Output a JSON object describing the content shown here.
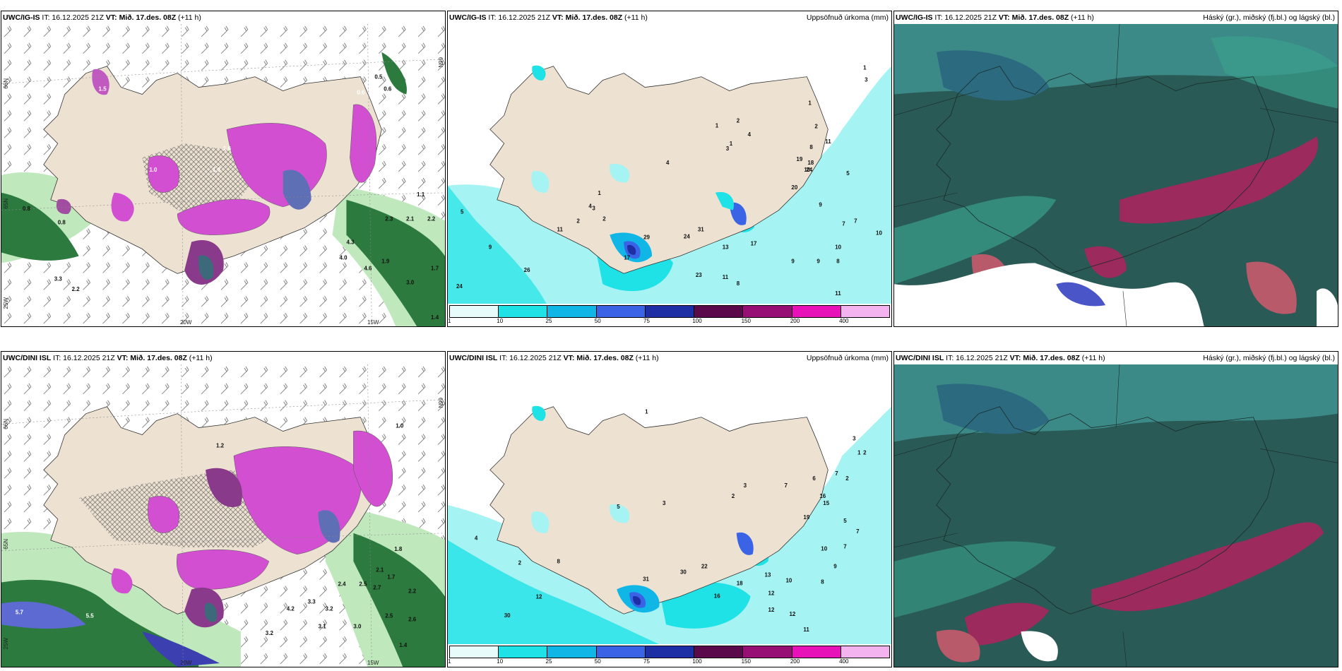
{
  "colors": {
    "land": "#ede2d2",
    "precip_light": "#a6f3f3",
    "precip_10": "#1fe2e6",
    "precip_25": "#10b7e6",
    "precip_50": "#3a63e6",
    "precip_75": "#1e2fa6",
    "precip_100": "#5a0a4a",
    "precip_150": "#970f75",
    "precip_200": "#e712b8",
    "precip_400": "#f3b3ef",
    "cloud_high": "#2a5a56",
    "cloud_mid": "#39a08b",
    "cloud_low": "#9c2a5c"
  },
  "colorbar_labels": [
    "1",
    "10",
    "25",
    "50",
    "75",
    "100",
    "150",
    "200",
    "400"
  ],
  "rows": [
    {
      "model": "UWC/IG-IS",
      "left": {
        "it": "IT: 16.12.2025 21Z",
        "vt": "VT: Mið. 17.des. 08Z",
        "step": "(+11 h)"
      },
      "mid": {
        "it": "IT: 16.12.2025 21Z",
        "vt": "VT: Mið. 17.des. 08Z",
        "step": "(+11 h)",
        "title": "Uppsöfnuð úrkoma (mm)"
      },
      "right": {
        "it": "IT: 16.12.2025 21Z",
        "vt": "VT: Mið. 17.des. 08Z",
        "step": "(+11 h)",
        "title": "Háský (gr.), miðský (fj.bl.) og lágský (bl.)"
      },
      "axes": {
        "lat_top": "66N",
        "lat_mid": "65N",
        "lat_bot": "25W",
        "lon_a": "20W",
        "lon_b": "15W"
      },
      "wind_values": [
        "0.5",
        "0.6",
        "0.6",
        "1.0",
        "1.6",
        "1.0",
        "0.8",
        "0.8",
        "1.5",
        "3.3",
        "2.2",
        "4.3",
        "4.0",
        "4.6",
        "3.0",
        "1.9",
        "1.7",
        "1.1",
        "2.3",
        "2.1",
        "2.2",
        "1.4"
      ],
      "precip_values": [
        "1",
        "3",
        "1",
        "2",
        "2",
        "4",
        "1",
        "1",
        "4",
        "3",
        "8",
        "11",
        "10",
        "18",
        "19",
        "24",
        "20",
        "5",
        "9",
        "7",
        "7",
        "10",
        "10",
        "9",
        "9",
        "8",
        "4",
        "5",
        "1",
        "3",
        "2",
        "2",
        "11",
        "9",
        "26",
        "24",
        "29",
        "24",
        "31",
        "17",
        "13",
        "17",
        "23",
        "11",
        "8",
        "11"
      ]
    },
    {
      "model": "UWC/DINI ISL",
      "left": {
        "it": "IT: 16.12.2025 21Z",
        "vt": "VT: Mið. 17.des. 08Z",
        "step": "(+11 h)"
      },
      "mid": {
        "it": "IT: 16.12.2025 21Z",
        "vt": "VT: Mið. 17.des. 08Z",
        "step": "(+11 h)",
        "title": "Uppsöfnuð úrkoma (mm)"
      },
      "right": {
        "it": "IT: 16.12.2025 21Z",
        "vt": "VT: Mið. 17.des. 08Z",
        "step": "(+11 h)",
        "title": "Háský (gr.), miðský (fj.bl.) og lágský (bl.)"
      },
      "axes": {
        "lat_top": "66N",
        "lat_mid": "65N",
        "lat_bot": "25W",
        "lon_a": "20W",
        "lon_b": "15W"
      },
      "wind_values": [
        "1.2",
        "1.0",
        "1.7",
        "1.8",
        "2.1",
        "2.2",
        "2.4",
        "2.5",
        "2.7",
        "2.5",
        "2.6",
        "3.3",
        "3.2",
        "3.1",
        "3.0",
        "4.2",
        "5.7",
        "5.5",
        "3.2",
        "1.4"
      ],
      "precip_values": [
        "1",
        "3",
        "2",
        "2",
        "7",
        "6",
        "16",
        "15",
        "19",
        "7",
        "5",
        "7",
        "7",
        "10",
        "9",
        "8",
        "3",
        "2",
        "3",
        "5",
        "4",
        "1",
        "2",
        "8",
        "12",
        "30",
        "31",
        "30",
        "22",
        "16",
        "18",
        "13",
        "10",
        "12",
        "12",
        "12",
        "11"
      ]
    }
  ]
}
